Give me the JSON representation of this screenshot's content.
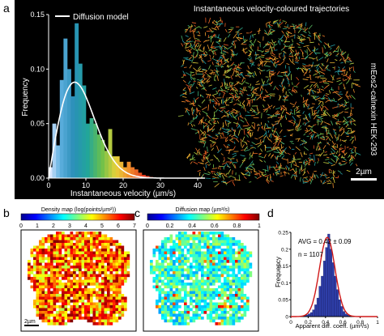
{
  "panels": {
    "a": "a",
    "b": "b",
    "c": "c",
    "d": "d"
  },
  "panel_a": {
    "legend": "Diffusion model",
    "ylabel": "Frequency",
    "xlabel": "Instantaneous velocity (µm/s)",
    "xticks": [
      "0",
      "10",
      "20",
      "30",
      "40"
    ],
    "yticks": [
      "0.00",
      "0.05",
      "0.10",
      "0.15"
    ],
    "traj_title": "Instantaneous velocity-coloured trajectories",
    "cell_label": "mEos2-calnexin HEK-293",
    "scalebar": "2µm"
  },
  "panel_b": {
    "title": "Density map (log(points/µm²))",
    "ticks": [
      "0",
      "1",
      "2",
      "3",
      "4",
      "5",
      "6",
      "7"
    ],
    "scalebar": "2µm"
  },
  "panel_c": {
    "title": "Diffusion map (µm²/s)",
    "ticks": [
      "0",
      "0.2",
      "0.4",
      "0.6",
      "0.8",
      "1"
    ]
  },
  "panel_d": {
    "avg": "AVG = 0.42 ± 0.09",
    "n": "n = 1107",
    "ylabel": "Frequency",
    "xlabel": "Apparent diff. coeff. (µm²/s)",
    "xticks": [
      "0",
      "0.2",
      "0.4",
      "0.6",
      "0.8",
      "1"
    ],
    "yticks": [
      "0",
      "0.05",
      "0.1",
      "0.15",
      "0.2",
      "0.25"
    ]
  },
  "chart_data": [
    {
      "type": "bar",
      "panel": "a",
      "xlabel": "Instantaneous velocity (µm/s)",
      "ylabel": "Frequency",
      "xlim": [
        0,
        40
      ],
      "ylim": [
        0,
        0.15
      ],
      "bin_width": 1,
      "x": [
        0,
        1,
        2,
        3,
        4,
        5,
        6,
        7,
        8,
        9,
        10,
        11,
        12,
        13,
        14,
        15,
        16,
        17,
        18,
        19,
        20,
        21,
        22,
        23,
        24,
        25,
        26,
        27
      ],
      "values": [
        0.01,
        0.05,
        0.03,
        0.09,
        0.128,
        0.1,
        0.075,
        0.142,
        0.105,
        0.085,
        0.05,
        0.055,
        0.05,
        0.04,
        0.035,
        0.025,
        0.045,
        0.02,
        0.02,
        0.015,
        0.01,
        0.015,
        0.01,
        0.008,
        0.005,
        0.003,
        0.002,
        0.001
      ],
      "series": [
        {
          "name": "Diffusion model",
          "type": "line",
          "curve": "rayleigh",
          "sigma": 7,
          "scale": 0.088
        }
      ]
    },
    {
      "type": "bar",
      "panel": "d",
      "xlabel": "Apparent diff. coeff. (µm²/s)",
      "ylabel": "Frequency",
      "xlim": [
        0,
        1
      ],
      "ylim": [
        0,
        0.25
      ],
      "bin_width": 0.025,
      "x": [
        0.15,
        0.175,
        0.2,
        0.225,
        0.25,
        0.275,
        0.3,
        0.325,
        0.35,
        0.375,
        0.4,
        0.425,
        0.45,
        0.475,
        0.5,
        0.525,
        0.55,
        0.575,
        0.6,
        0.625,
        0.65,
        0.675
      ],
      "values": [
        0.003,
        0.005,
        0.008,
        0.012,
        0.02,
        0.035,
        0.055,
        0.09,
        0.12,
        0.165,
        0.205,
        0.245,
        0.2,
        0.16,
        0.12,
        0.08,
        0.05,
        0.03,
        0.015,
        0.008,
        0.004,
        0.002
      ],
      "series": [
        {
          "name": "Gaussian fit",
          "type": "line",
          "mean": 0.42,
          "sd": 0.09,
          "peak": 0.235
        }
      ]
    }
  ]
}
